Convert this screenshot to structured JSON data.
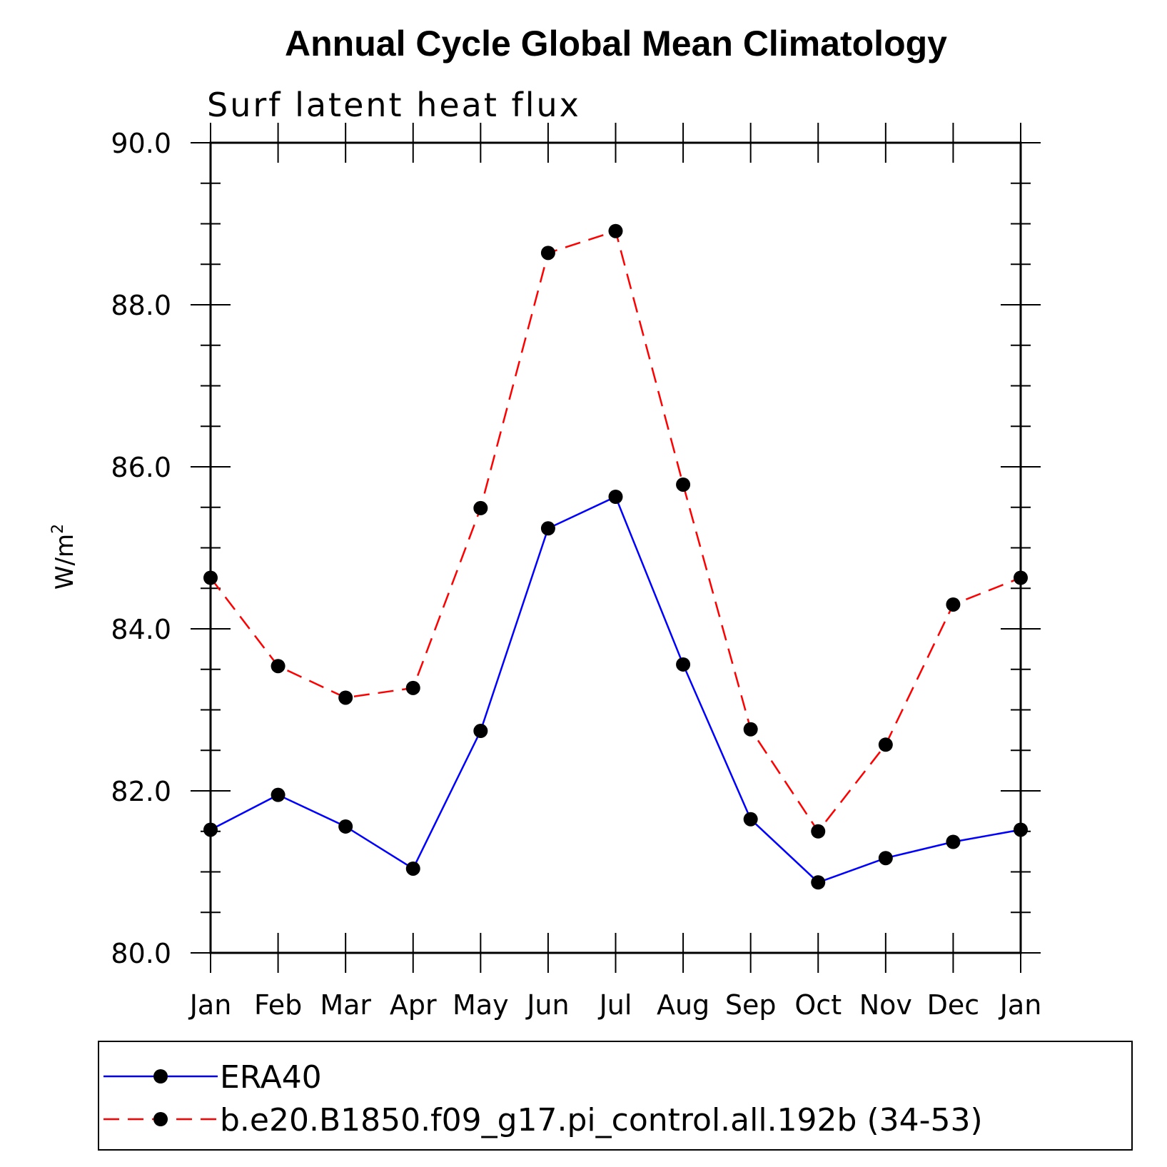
{
  "chart_data": {
    "type": "line",
    "title": "Annual Cycle Global Mean Climatology",
    "subtitle": "Surf latent heat flux",
    "xlabel": "",
    "ylabel": "W/m",
    "ylabel_superscript": "2",
    "categories": [
      "Jan",
      "Feb",
      "Mar",
      "Apr",
      "May",
      "Jun",
      "Jul",
      "Aug",
      "Sep",
      "Oct",
      "Nov",
      "Dec",
      "Jan"
    ],
    "ylim": [
      80.0,
      90.0
    ],
    "yticks": [
      "80.0",
      "82.0",
      "84.0",
      "86.0",
      "88.0",
      "90.0"
    ],
    "grid": false,
    "legend_position": "bottom",
    "series": [
      {
        "name": "ERA40",
        "color": "#0000ff",
        "dash": "solid",
        "marker": "filled-circle",
        "values": [
          81.52,
          81.95,
          81.56,
          81.04,
          82.74,
          85.24,
          85.63,
          83.56,
          81.65,
          80.87,
          81.17,
          81.37,
          81.52
        ]
      },
      {
        "name": "b.e20.B1850.f09_g17.pi_control.all.192b (34-53)",
        "color": "#ff0000",
        "dash": "dashed",
        "marker": "filled-circle",
        "values": [
          84.63,
          83.54,
          83.15,
          83.27,
          85.49,
          88.64,
          88.91,
          85.78,
          82.76,
          81.5,
          82.57,
          84.3,
          84.63
        ]
      }
    ]
  }
}
